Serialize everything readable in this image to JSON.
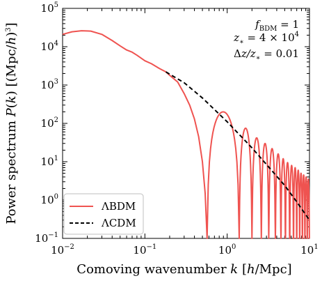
{
  "chart_data": {
    "type": "line",
    "xlabel": "Comoving wavenumber k [h/Mpc]",
    "ylabel": "Power spectrum P(k) [(Mpc/h)³]",
    "xscale": "log",
    "yscale": "log",
    "xlim": [
      0.01,
      10
    ],
    "ylim": [
      0.1,
      100000
    ],
    "x_ticks": [
      {
        "base": "10",
        "exp": "−2",
        "value": 0.01
      },
      {
        "base": "10",
        "exp": "−1",
        "value": 0.1
      },
      {
        "base": "10",
        "exp": "0",
        "value": 1
      },
      {
        "base": "10",
        "exp": "1",
        "value": 10
      }
    ],
    "y_ticks": [
      {
        "base": "10",
        "exp": "−1",
        "value": 0.1
      },
      {
        "base": "10",
        "exp": "0",
        "value": 1
      },
      {
        "base": "10",
        "exp": "1",
        "value": 10
      },
      {
        "base": "10",
        "exp": "2",
        "value": 100
      },
      {
        "base": "10",
        "exp": "3",
        "value": 1000
      },
      {
        "base": "10",
        "exp": "4",
        "value": 10000
      },
      {
        "base": "10",
        "exp": "5",
        "value": 100000
      }
    ],
    "annotations": [
      "f_BDM = 1",
      "z_* = 4 × 10^4",
      "Δz/z_* = 0.01"
    ],
    "legend_position": "lower-left",
    "series": [
      {
        "name": "ΛBDM",
        "color": "#ef5350",
        "style": "solid",
        "smooth_points": [
          {
            "x": 0.01,
            "y": 21000
          },
          {
            "x": 0.013,
            "y": 24500
          },
          {
            "x": 0.017,
            "y": 26000
          },
          {
            "x": 0.022,
            "y": 25500
          },
          {
            "x": 0.03,
            "y": 21000
          },
          {
            "x": 0.04,
            "y": 14500
          },
          {
            "x": 0.05,
            "y": 10500
          },
          {
            "x": 0.06,
            "y": 8200
          },
          {
            "x": 0.07,
            "y": 7200
          },
          {
            "x": 0.08,
            "y": 6000
          },
          {
            "x": 0.1,
            "y": 4300
          },
          {
            "x": 0.12,
            "y": 3600
          },
          {
            "x": 0.15,
            "y": 2700
          },
          {
            "x": 0.18,
            "y": 2200
          },
          {
            "x": 0.2,
            "y": 1800
          },
          {
            "x": 0.25,
            "y": 1200
          },
          {
            "x": 0.3,
            "y": 600
          },
          {
            "x": 0.35,
            "y": 300
          },
          {
            "x": 0.4,
            "y": 130
          },
          {
            "x": 0.45,
            "y": 45
          },
          {
            "x": 0.5,
            "y": 10
          },
          {
            "x": 0.54,
            "y": 1.5
          },
          {
            "x": 0.57,
            "y": 0.1
          }
        ],
        "oscillation_zeros": [
          0.57,
          1.4,
          2.0,
          2.6,
          3.2,
          3.85,
          4.5,
          5.1,
          5.75,
          6.4,
          7.0,
          7.6,
          8.2,
          8.8,
          9.4
        ],
        "oscillation_peaks": [
          {
            "x": 0.95,
            "y": 200
          },
          {
            "x": 1.7,
            "y": 75
          },
          {
            "x": 2.3,
            "y": 42
          },
          {
            "x": 2.9,
            "y": 30
          },
          {
            "x": 3.5,
            "y": 22
          },
          {
            "x": 4.15,
            "y": 16
          },
          {
            "x": 4.8,
            "y": 12
          },
          {
            "x": 5.4,
            "y": 9.5
          },
          {
            "x": 6.05,
            "y": 8
          },
          {
            "x": 6.7,
            "y": 7
          },
          {
            "x": 7.3,
            "y": 6
          },
          {
            "x": 7.9,
            "y": 5
          },
          {
            "x": 8.5,
            "y": 4.5
          },
          {
            "x": 9.1,
            "y": 4
          },
          {
            "x": 9.7,
            "y": 3.5
          }
        ]
      },
      {
        "name": "ΛCDM",
        "color": "#000000",
        "style": "dashed",
        "points": [
          {
            "x": 0.18,
            "y": 2200
          },
          {
            "x": 0.3,
            "y": 1150
          },
          {
            "x": 0.5,
            "y": 460
          },
          {
            "x": 1,
            "y": 110
          },
          {
            "x": 2,
            "y": 23
          },
          {
            "x": 3,
            "y": 8.5
          },
          {
            "x": 5,
            "y": 2.4
          },
          {
            "x": 7,
            "y": 0.9
          },
          {
            "x": 10,
            "y": 0.3
          }
        ]
      }
    ]
  }
}
